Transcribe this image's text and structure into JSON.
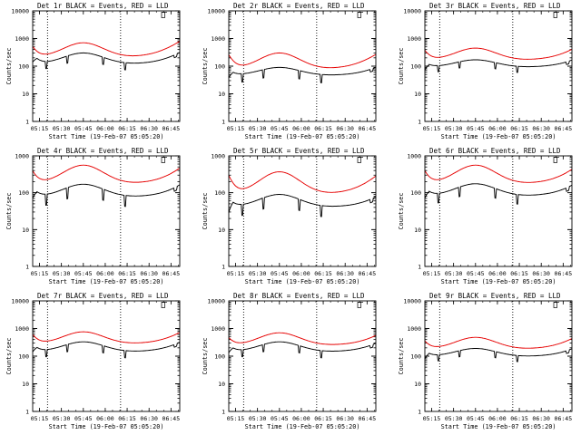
{
  "figure": {
    "colors": {
      "events": "#000000",
      "lld": "#e60000",
      "axes": "#000000",
      "marker": "#000000"
    },
    "x_tick_labels": [
      "05:15",
      "05:30",
      "05:45",
      "06:00",
      "06:15",
      "06:30",
      "06:45"
    ],
    "xlabel": "Start Time (19-Feb-07 05:05:20)",
    "ylabel": "Counts/sec"
  },
  "chart_data": [
    {
      "type": "line",
      "title": "Det 1r BLACK = Events, RED = LLD",
      "xlabel": "Start Time (19-Feb-07 05:05:20)",
      "ylabel": "Counts/sec",
      "yscale": "log",
      "ylim": [
        1,
        10000
      ],
      "y_tick_labels": [
        "10000",
        "1000",
        "100",
        "10",
        "1"
      ],
      "xlim_min": [
        5.33,
        106.0
      ],
      "xticks_min": [
        10,
        25,
        40,
        55,
        70,
        85,
        100
      ],
      "dotted_lines_min": [
        15.5,
        65.5
      ],
      "series": [
        {
          "name": "LLD (red)",
          "style": "smooth",
          "min_val": 200,
          "max_val": 700,
          "peak_min": 40,
          "left_val": 550,
          "right_val": 900,
          "gap_min": [
            10,
            10
          ],
          "gap_drop": 0.9
        },
        {
          "name": "Events (black)",
          "style": "segments",
          "min_val": 115,
          "max_val": 300,
          "peak_min": 40,
          "left_val": 300,
          "right_val": 350,
          "step_min": [
            14.5,
            29,
            53.5,
            68.5
          ],
          "step_drop": 0.55,
          "edge_drop": 0.5
        }
      ]
    },
    {
      "type": "line",
      "title": "Det 2r BLACK = Events, RED = LLD",
      "xlabel": "Start Time (19-Feb-07 05:05:20)",
      "ylabel": "Counts/sec",
      "yscale": "log",
      "ylim": [
        1,
        10000
      ],
      "y_tick_labels": [
        "10000",
        "1000",
        "100",
        "10",
        "1"
      ],
      "xlim_min": [
        5.33,
        106.0
      ],
      "xticks_min": [
        10,
        25,
        40,
        55,
        70,
        85,
        100
      ],
      "dotted_lines_min": [
        15.5,
        65.5
      ],
      "series": [
        {
          "name": "LLD (red)",
          "style": "smooth",
          "min_val": 75,
          "max_val": 300,
          "peak_min": 40,
          "left_val": 280,
          "right_val": 300,
          "gap_min": [
            10,
            10
          ],
          "gap_drop": 0.9
        },
        {
          "name": "Events (black)",
          "style": "segments",
          "min_val": 45,
          "max_val": 90,
          "peak_min": 40,
          "left_val": 80,
          "right_val": 100,
          "step_min": [
            14.5,
            29,
            53.5,
            68.5
          ],
          "step_drop": 0.5,
          "edge_drop": 0.5
        }
      ]
    },
    {
      "type": "line",
      "title": "Det 3r BLACK = Events, RED = LLD",
      "xlabel": "Start Time (19-Feb-07 05:05:20)",
      "ylabel": "Counts/sec",
      "yscale": "log",
      "ylim": [
        1,
        10000
      ],
      "y_tick_labels": [
        "10000",
        "1000",
        "100",
        "10",
        "1"
      ],
      "xlim_min": [
        5.33,
        106.0
      ],
      "xticks_min": [
        10,
        25,
        40,
        55,
        70,
        85,
        100
      ],
      "dotted_lines_min": [
        15.5,
        65.5
      ],
      "series": [
        {
          "name": "LLD (red)",
          "style": "smooth",
          "min_val": 160,
          "max_val": 450,
          "peak_min": 40,
          "left_val": 400,
          "right_val": 450,
          "gap_min": [
            10,
            10
          ],
          "gap_drop": 0.9
        },
        {
          "name": "Events (black)",
          "style": "segments",
          "min_val": 90,
          "max_val": 170,
          "peak_min": 40,
          "left_val": 150,
          "right_val": 180,
          "step_min": [
            14.5,
            29,
            53.5,
            68.5
          ],
          "step_drop": 0.6,
          "edge_drop": 0.5
        }
      ]
    },
    {
      "type": "line",
      "title": "Det 4r BLACK = Events, RED = LLD",
      "xlabel": "Start Time (19-Feb-07 05:05:20)",
      "ylabel": "Counts/sec",
      "yscale": "log",
      "ylim": [
        1,
        1000
      ],
      "y_tick_labels": [
        "1000",
        "100",
        "10",
        "1"
      ],
      "xlim_min": [
        5.33,
        106.0
      ],
      "xticks_min": [
        10,
        25,
        40,
        55,
        70,
        85,
        100
      ],
      "dotted_lines_min": [
        15.5,
        65.5
      ],
      "series": [
        {
          "name": "LLD (red)",
          "style": "smooth",
          "min_val": 170,
          "max_val": 560,
          "peak_min": 40,
          "left_val": 420,
          "right_val": 520,
          "gap_min": [
            10,
            10
          ],
          "gap_drop": 0.9
        },
        {
          "name": "Events (black)",
          "style": "segments",
          "min_val": 75,
          "max_val": 170,
          "peak_min": 40,
          "left_val": 150,
          "right_val": 180,
          "step_min": [
            14.5,
            29,
            53.5,
            68.5
          ],
          "step_drop": 0.5,
          "edge_drop": 0.5
        }
      ]
    },
    {
      "type": "line",
      "title": "Det 5r BLACK = Events, RED = LLD",
      "xlabel": "Start Time (19-Feb-07 05:05:20)",
      "ylabel": "Counts/sec",
      "yscale": "log",
      "ylim": [
        1,
        1000
      ],
      "y_tick_labels": [
        "1000",
        "100",
        "10",
        "1"
      ],
      "xlim_min": [
        5.33,
        106.0
      ],
      "xticks_min": [
        10,
        25,
        40,
        55,
        70,
        85,
        100
      ],
      "dotted_lines_min": [
        15.5,
        65.5
      ],
      "series": [
        {
          "name": "LLD (red)",
          "style": "smooth",
          "min_val": 88,
          "max_val": 370,
          "peak_min": 40,
          "left_val": 320,
          "right_val": 320,
          "gap_min": [
            10,
            10
          ],
          "gap_drop": 0.9
        },
        {
          "name": "Events (black)",
          "style": "segments",
          "min_val": 40,
          "max_val": 90,
          "peak_min": 40,
          "left_val": 75,
          "right_val": 85,
          "step_min": [
            14.5,
            29,
            53.5,
            68.5
          ],
          "step_drop": 0.5,
          "edge_drop": 0.4
        }
      ]
    },
    {
      "type": "line",
      "title": "Det 6r BLACK = Events, RED = LLD",
      "xlabel": "Start Time (19-Feb-07 05:05:20)",
      "ylabel": "Counts/sec",
      "yscale": "log",
      "ylim": [
        1,
        1000
      ],
      "y_tick_labels": [
        "1000",
        "100",
        "10",
        "1"
      ],
      "xlim_min": [
        5.33,
        106.0
      ],
      "xticks_min": [
        10,
        25,
        40,
        55,
        70,
        85,
        100
      ],
      "dotted_lines_min": [
        15.5,
        65.5
      ],
      "series": [
        {
          "name": "LLD (red)",
          "style": "smooth",
          "min_val": 170,
          "max_val": 560,
          "peak_min": 40,
          "left_val": 420,
          "right_val": 480,
          "gap_min": [
            10,
            10
          ],
          "gap_drop": 0.9
        },
        {
          "name": "Events (black)",
          "style": "segments",
          "min_val": 80,
          "max_val": 175,
          "peak_min": 40,
          "left_val": 150,
          "right_val": 175,
          "step_min": [
            14.5,
            29,
            53.5,
            68.5
          ],
          "step_drop": 0.55,
          "edge_drop": 0.5
        }
      ]
    },
    {
      "type": "line",
      "title": "Det 7r BLACK = Events, RED = LLD",
      "xlabel": "Start Time (19-Feb-07 05:05:20)",
      "ylabel": "Counts/sec",
      "yscale": "log",
      "ylim": [
        1,
        10000
      ],
      "y_tick_labels": [
        "10000",
        "1000",
        "100",
        "10",
        "1"
      ],
      "xlim_min": [
        5.33,
        106.0
      ],
      "xticks_min": [
        10,
        25,
        40,
        55,
        70,
        85,
        100
      ],
      "dotted_lines_min": [
        15.5,
        65.5
      ],
      "series": [
        {
          "name": "LLD (red)",
          "style": "smooth",
          "min_val": 270,
          "max_val": 760,
          "peak_min": 40,
          "left_val": 650,
          "right_val": 800,
          "gap_min": [
            10,
            10
          ],
          "gap_drop": 0.9
        },
        {
          "name": "Events (black)",
          "style": "segments",
          "min_val": 140,
          "max_val": 330,
          "peak_min": 40,
          "left_val": 300,
          "right_val": 350,
          "step_min": [
            14.5,
            29,
            53.5,
            68.5
          ],
          "step_drop": 0.55,
          "edge_drop": 0.5
        }
      ]
    },
    {
      "type": "line",
      "title": "Det 8r BLACK = Events, RED = LLD",
      "xlabel": "Start Time (19-Feb-07 05:05:20)",
      "ylabel": "Counts/sec",
      "yscale": "log",
      "ylim": [
        1,
        10000
      ],
      "y_tick_labels": [
        "10000",
        "1000",
        "100",
        "10",
        "1"
      ],
      "xlim_min": [
        5.33,
        106.0
      ],
      "xticks_min": [
        10,
        25,
        40,
        55,
        70,
        85,
        100
      ],
      "dotted_lines_min": [
        15.5,
        65.5
      ],
      "series": [
        {
          "name": "LLD (red)",
          "style": "smooth",
          "min_val": 240,
          "max_val": 700,
          "peak_min": 40,
          "left_val": 500,
          "right_val": 620,
          "gap_min": [
            10,
            10
          ],
          "gap_drop": 0.9
        },
        {
          "name": "Events (black)",
          "style": "segments",
          "min_val": 140,
          "max_val": 330,
          "peak_min": 40,
          "left_val": 280,
          "right_val": 320,
          "step_min": [
            14.5,
            29,
            53.5,
            68.5
          ],
          "step_drop": 0.55,
          "edge_drop": 0.5
        }
      ]
    },
    {
      "type": "line",
      "title": "Det 9r BLACK = Events, RED = LLD",
      "xlabel": "Start Time (19-Feb-07 05:05:20)",
      "ylabel": "Counts/sec",
      "yscale": "log",
      "ylim": [
        1,
        10000
      ],
      "y_tick_labels": [
        "10000",
        "1000",
        "100",
        "10",
        "1"
      ],
      "xlim_min": [
        5.33,
        106.0
      ],
      "xticks_min": [
        10,
        25,
        40,
        55,
        70,
        85,
        100
      ],
      "dotted_lines_min": [
        15.5,
        65.5
      ],
      "series": [
        {
          "name": "LLD (red)",
          "style": "smooth",
          "min_val": 175,
          "max_val": 480,
          "peak_min": 40,
          "left_val": 380,
          "right_val": 480,
          "gap_min": [
            10,
            10
          ],
          "gap_drop": 0.9
        },
        {
          "name": "Events (black)",
          "style": "segments",
          "min_val": 95,
          "max_val": 190,
          "peak_min": 40,
          "left_val": 170,
          "right_val": 200,
          "step_min": [
            14.5,
            29,
            53.5,
            68.5
          ],
          "step_drop": 0.6,
          "edge_drop": 0.5
        }
      ]
    }
  ]
}
